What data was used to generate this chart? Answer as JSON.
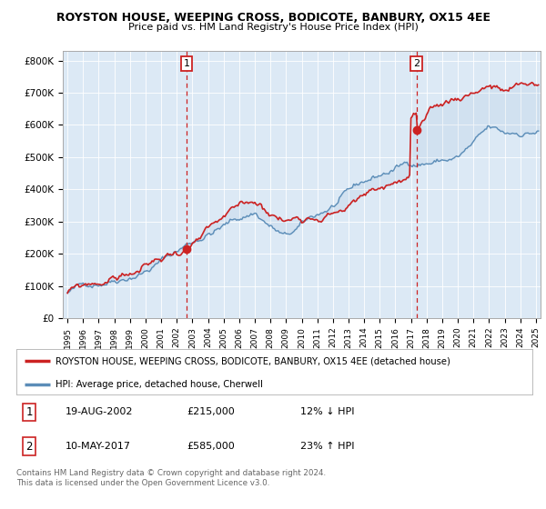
{
  "title": "ROYSTON HOUSE, WEEPING CROSS, BODICOTE, BANBURY, OX15 4EE",
  "subtitle": "Price paid vs. HM Land Registry's House Price Index (HPI)",
  "ylim": [
    0,
    830000
  ],
  "xlim_start": 1994.7,
  "xlim_end": 2025.3,
  "yticks": [
    0,
    100000,
    200000,
    300000,
    400000,
    500000,
    600000,
    700000,
    800000
  ],
  "ytick_labels": [
    "£0",
    "£100K",
    "£200K",
    "£300K",
    "£400K",
    "£500K",
    "£600K",
    "£700K",
    "£800K"
  ],
  "xtick_years": [
    1995,
    1996,
    1997,
    1998,
    1999,
    2000,
    2001,
    2002,
    2003,
    2004,
    2005,
    2006,
    2007,
    2008,
    2009,
    2010,
    2011,
    2012,
    2013,
    2014,
    2015,
    2016,
    2017,
    2018,
    2019,
    2020,
    2021,
    2022,
    2023,
    2024,
    2025
  ],
  "hpi_color": "#5b8db8",
  "house_color": "#cc2222",
  "vline_color": "#cc2222",
  "marker1_x": 2002.62,
  "marker1_y": 215000,
  "marker2_x": 2017.36,
  "marker2_y": 585000,
  "legend_house": "ROYSTON HOUSE, WEEPING CROSS, BODICOTE, BANBURY, OX15 4EE (detached house)",
  "legend_hpi": "HPI: Average price, detached house, Cherwell",
  "table_data": [
    {
      "num": "1",
      "date": "19-AUG-2002",
      "price": "£215,000",
      "hpi": "12% ↓ HPI"
    },
    {
      "num": "2",
      "date": "10-MAY-2017",
      "price": "£585,000",
      "hpi": "23% ↑ HPI"
    }
  ],
  "footnote": "Contains HM Land Registry data © Crown copyright and database right 2024.\nThis data is licensed under the Open Government Licence v3.0.",
  "background_color": "#dce9f5",
  "fig_bg_color": "#ffffff"
}
